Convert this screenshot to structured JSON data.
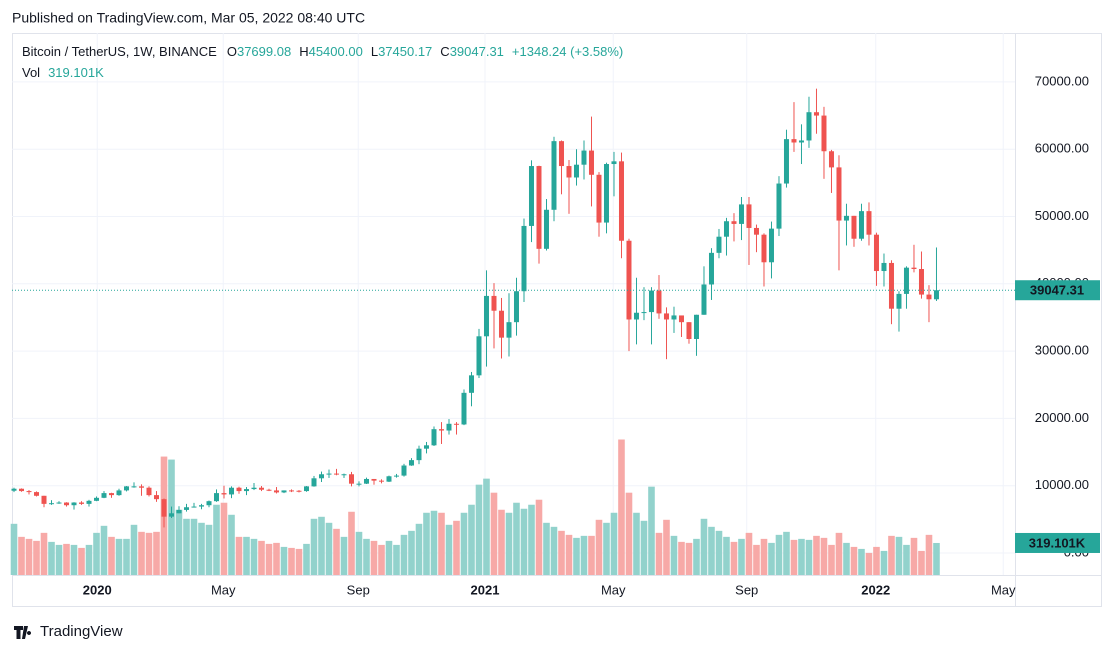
{
  "published": "Published on TradingView.com, Mar 05, 2022 08:40 UTC",
  "brand": "TradingView",
  "chart_data": {
    "type": "candlestick",
    "symbol": "Bitcoin / TetherUS, 1W, BINANCE",
    "legend": [
      {
        "key": "O",
        "value": "37699.08"
      },
      {
        "key": "H",
        "value": "45400.00"
      },
      {
        "key": "L",
        "value": "37450.17"
      },
      {
        "key": "C",
        "value": "39047.31"
      }
    ],
    "change": "+1348.24 (+3.58%)",
    "volume_name": "Vol",
    "volume_label": "319.101K",
    "up_color": "#26a69a",
    "down_color": "#ef5350",
    "volume_up_color": "#92d2cc",
    "volume_down_color": "#f7a9a7",
    "grid": true,
    "ylim": [
      -3270,
      77270
    ],
    "yticks": [
      {
        "value": 0,
        "label": "0.00"
      },
      {
        "value": 10000,
        "label": "10000.00"
      },
      {
        "value": 20000,
        "label": "20000.00"
      },
      {
        "value": 30000,
        "label": "30000.00"
      },
      {
        "value": 40000,
        "label": "40000.00"
      },
      {
        "value": 50000,
        "label": "50000.00"
      },
      {
        "value": 60000,
        "label": "60000.00"
      },
      {
        "value": 70000,
        "label": "70000.00"
      }
    ],
    "xlim": [
      -0.267,
      133.47
    ],
    "xticks": [
      {
        "value": 11.1,
        "label": "2020"
      },
      {
        "value": 27.9,
        "label": "May"
      },
      {
        "value": 45.9,
        "label": "Sep"
      },
      {
        "value": 62.8,
        "label": "2021"
      },
      {
        "value": 79.9,
        "label": "May"
      },
      {
        "value": 97.7,
        "label": "Sep"
      },
      {
        "value": 114.9,
        "label": "2022"
      },
      {
        "value": 131.9,
        "label": "May"
      }
    ],
    "volume_lim": [
      0,
      5400
    ],
    "open": [
      9250,
      9550,
      9200,
      9050,
      8500,
      7300,
      7400,
      7500,
      7100,
      7500,
      7300,
      7750,
      8200,
      8900,
      8600,
      9300,
      9900,
      9900,
      9700,
      8600,
      8000,
      5400,
      5900,
      6400,
      6800,
      6900,
      7100,
      7700,
      8900,
      8700,
      9700,
      9200,
      9500,
      9700,
      9400,
      9300,
      9000,
      9300,
      9250,
      9200,
      9900,
      11100,
      11700,
      11800,
      11700,
      11700,
      10300,
      10300,
      11000,
      10750,
      10600,
      11400,
      11500,
      13000,
      13800,
      15500,
      16000,
      18400,
      18200,
      19200,
      19100,
      23800,
      26400,
      32200,
      38200,
      36000,
      32000,
      34300,
      38900,
      48600,
      57500,
      45200,
      51000,
      61200,
      57500,
      55800,
      57700,
      59800,
      56200,
      49100,
      57800,
      58200,
      46400,
      34700,
      35700,
      35800,
      39000,
      35600,
      34700,
      35300,
      34300,
      31800,
      35400,
      39900,
      44600,
      47000,
      49300,
      48900,
      51800,
      48300,
      47300,
      43200,
      48200,
      54900,
      61500,
      61000,
      61300,
      65500,
      65000,
      59700,
      57300,
      49400,
      50100,
      46700,
      50800,
      47300,
      41900,
      43100,
      36300,
      38500,
      42400,
      42200,
      38400,
      37699.08
    ],
    "high": [
      9700,
      9600,
      9350,
      9150,
      8500,
      7850,
      7700,
      7550,
      7550,
      7700,
      7900,
      8400,
      9200,
      8950,
      9550,
      9950,
      10500,
      10200,
      9900,
      9200,
      8100,
      6900,
      6950,
      7300,
      7450,
      7300,
      7800,
      9450,
      10000,
      9900,
      9850,
      9800,
      10400,
      9950,
      9550,
      9800,
      9300,
      9450,
      9350,
      9950,
      11450,
      12100,
      12400,
      12500,
      11800,
      12050,
      10650,
      11200,
      11000,
      10950,
      11500,
      11750,
      13250,
      14100,
      15950,
      16500,
      18800,
      19450,
      19900,
      19450,
      24300,
      26900,
      33300,
      42000,
      40100,
      37900,
      38600,
      40900,
      49700,
      58350,
      57550,
      52600,
      61850,
      61300,
      58400,
      60000,
      61300,
      64850,
      56600,
      58000,
      59600,
      59500,
      46700,
      40900,
      39500,
      39500,
      41300,
      36500,
      36600,
      35000,
      34300,
      35400,
      42600,
      45300,
      48150,
      49800,
      50500,
      52900,
      52900,
      48800,
      47500,
      49250,
      56000,
      62900,
      67000,
      63700,
      67800,
      69000,
      66300,
      59900,
      59100,
      51900,
      50100,
      51900,
      52100,
      47600,
      44500,
      43500,
      38900,
      42600,
      45800,
      44800,
      39800,
      45400
    ],
    "low": [
      9050,
      9100,
      8700,
      8400,
      6800,
      7150,
      7300,
      6900,
      6450,
      7150,
      6900,
      7700,
      8150,
      8200,
      8500,
      9150,
      9700,
      8500,
      8400,
      7600,
      3800,
      5200,
      5900,
      6150,
      6750,
      6500,
      6800,
      7600,
      8100,
      8150,
      8800,
      8600,
      9350,
      9200,
      9200,
      8850,
      8900,
      9050,
      9000,
      9100,
      9850,
      10550,
      11150,
      11550,
      11150,
      9900,
      9900,
      10250,
      10150,
      10350,
      10550,
      11200,
      11350,
      12950,
      13200,
      14800,
      15900,
      16200,
      17600,
      17600,
      19000,
      21800,
      26000,
      27700,
      30400,
      28900,
      29200,
      32300,
      37300,
      46200,
      43000,
      44950,
      49300,
      53300,
      50400,
      54600,
      55500,
      51500,
      47000,
      47500,
      53000,
      43800,
      30000,
      31000,
      34600,
      31000,
      34800,
      28800,
      32700,
      32100,
      31100,
      29300,
      35400,
      37600,
      43800,
      44200,
      46300,
      46500,
      42800,
      44700,
      39600,
      40800,
      47100,
      54300,
      59600,
      57800,
      60200,
      62300,
      55600,
      53500,
      42000,
      45700,
      45500,
      46400,
      45700,
      39700,
      39600,
      34000,
      32900,
      36300,
      41700,
      37800,
      34300,
      37450.17
    ],
    "close": [
      9550,
      9200,
      9050,
      8500,
      7300,
      7400,
      7500,
      7100,
      7500,
      7300,
      7750,
      8200,
      8900,
      8600,
      9300,
      9900,
      9900,
      9700,
      8600,
      8000,
      5400,
      5900,
      6400,
      6800,
      6900,
      7100,
      7700,
      8900,
      8700,
      9700,
      9200,
      9500,
      9700,
      9400,
      9300,
      9000,
      9300,
      9250,
      9200,
      9900,
      11100,
      11700,
      11800,
      11700,
      11700,
      10300,
      10300,
      11000,
      10750,
      10600,
      11400,
      11500,
      13000,
      13800,
      15500,
      16000,
      18400,
      18200,
      19200,
      19100,
      23800,
      26400,
      32200,
      38200,
      36000,
      32000,
      34300,
      38900,
      48600,
      57500,
      45200,
      51000,
      61200,
      57500,
      55800,
      57700,
      59800,
      56200,
      49100,
      57800,
      58200,
      46400,
      34700,
      35700,
      35800,
      39000,
      35600,
      34700,
      35300,
      34300,
      31800,
      35400,
      39900,
      44600,
      47000,
      49300,
      48900,
      51800,
      48300,
      47300,
      43200,
      48200,
      54900,
      61500,
      61000,
      61300,
      65500,
      65000,
      59700,
      57300,
      49400,
      50100,
      46700,
      50800,
      47300,
      41900,
      43100,
      36300,
      38500,
      42400,
      42200,
      38400,
      37700,
      39047.31
    ],
    "volume": [
      510,
      380,
      360,
      340,
      420,
      330,
      300,
      310,
      300,
      270,
      300,
      420,
      490,
      380,
      360,
      360,
      500,
      430,
      420,
      430,
      1180,
      1150,
      650,
      560,
      560,
      520,
      500,
      700,
      720,
      600,
      380,
      380,
      360,
      340,
      310,
      320,
      280,
      270,
      260,
      310,
      560,
      580,
      520,
      460,
      380,
      630,
      430,
      360,
      340,
      300,
      340,
      300,
      400,
      440,
      510,
      620,
      640,
      620,
      500,
      540,
      620,
      700,
      900,
      960,
      820,
      650,
      620,
      720,
      660,
      700,
      750,
      520,
      480,
      440,
      400,
      370,
      390,
      390,
      550,
      520,
      620,
      1350,
      820,
      620,
      540,
      880,
      420,
      550,
      390,
      330,
      320,
      360,
      560,
      480,
      440,
      380,
      330,
      360,
      420,
      300,
      360,
      320,
      400,
      430,
      350,
      360,
      350,
      390,
      370,
      300,
      420,
      320,
      280,
      260,
      220,
      280,
      240,
      390,
      380,
      300,
      370,
      240,
      400,
      319.101
    ]
  }
}
